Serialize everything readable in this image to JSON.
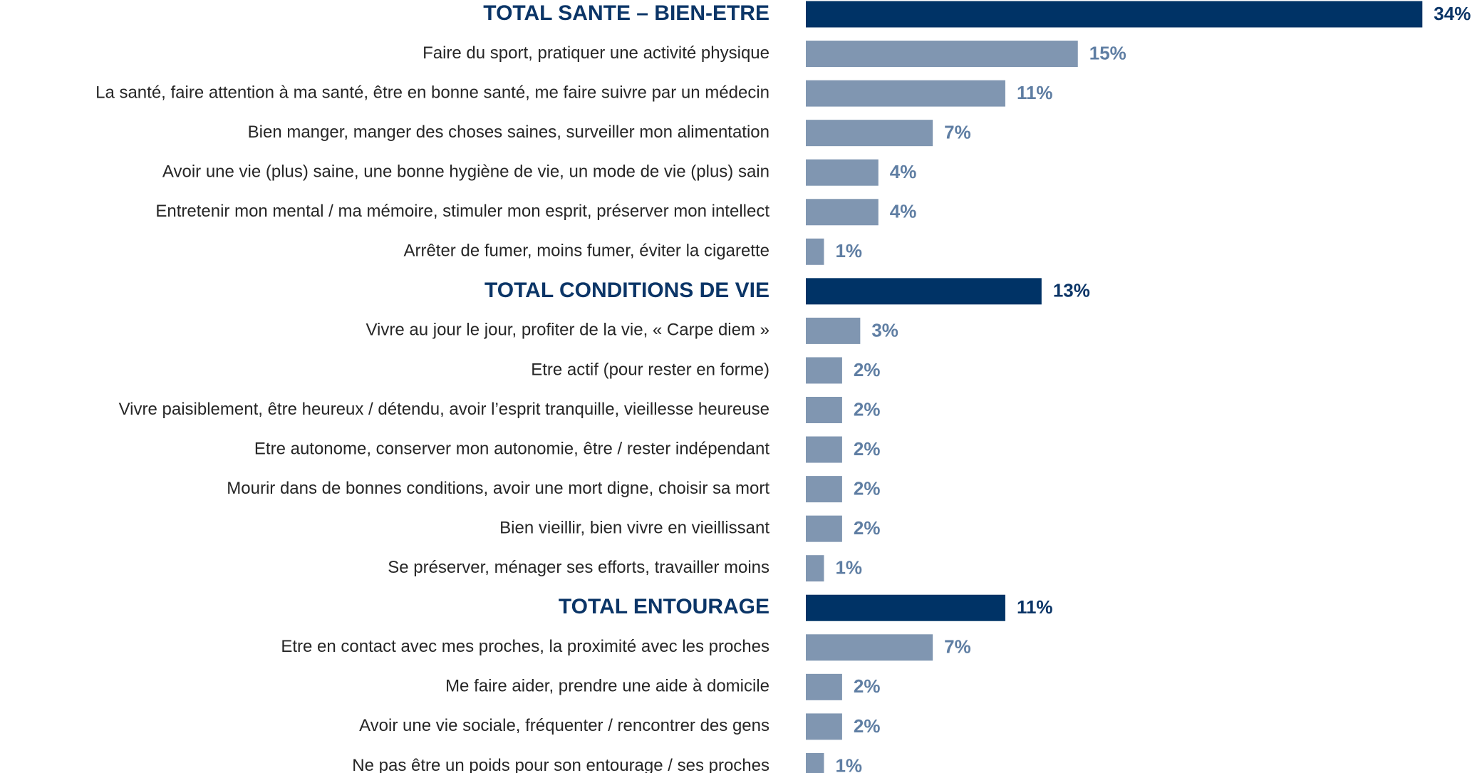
{
  "chart_data": {
    "type": "hbar",
    "categories": [
      "TOTAL SANTE – BIEN-ETRE",
      "Faire du sport, pratiquer une activité physique",
      "La santé, faire attention à ma santé, être en bonne santé, me faire suivre par un médecin",
      "Bien manger, manger des choses saines, surveiller mon alimentation",
      "Avoir une vie (plus) saine, une bonne hygiène de vie, un mode de vie (plus) sain",
      "Entretenir mon mental / ma mémoire, stimuler mon esprit, préserver mon intellect",
      "Arrêter de fumer, moins fumer, éviter la cigarette",
      "TOTAL CONDITIONS DE VIE",
      "Vivre au jour le jour, profiter de la vie, « Carpe diem »",
      "Etre actif (pour rester en forme)",
      "Vivre paisiblement, être heureux / détendu, avoir l’esprit tranquille, vieillesse heureuse",
      "Etre autonome, conserver mon autonomie, être / rester indépendant",
      "Mourir dans de bonnes conditions, avoir une mort digne, choisir sa mort",
      "Bien vieillir, bien vivre en vieillissant",
      "Se préserver, ménager ses efforts, travailler moins",
      "TOTAL ENTOURAGE",
      "Etre en contact avec mes proches, la proximité avec les proches",
      "Me faire aider, prendre une aide à domicile",
      "Avoir une vie sociale, fréquenter / rencontrer des gens",
      "Ne pas être un poids pour son entourage / ses proches"
    ],
    "values": [
      34,
      15,
      11,
      7,
      4,
      4,
      1,
      13,
      3,
      2,
      2,
      2,
      2,
      2,
      1,
      11,
      7,
      2,
      2,
      1
    ],
    "value_labels": [
      "34%",
      "15%",
      "11%",
      "7%",
      "4%",
      "4%",
      "1%",
      "13%",
      "3%",
      "2%",
      "2%",
      "2%",
      "2%",
      "2%",
      "1%",
      "11%",
      "7%",
      "2%",
      "2%",
      "1%"
    ],
    "colors": [
      "#003366",
      "#8096b1",
      "#8096b1",
      "#8096b1",
      "#8096b1",
      "#8096b1",
      "#8096b1",
      "#003366",
      "#8096b1",
      "#8096b1",
      "#8096b1",
      "#8096b1",
      "#8096b1",
      "#8096b1",
      "#8096b1",
      "#003366",
      "#8096b1",
      "#8096b1",
      "#8096b1",
      "#8096b1"
    ],
    "highlight_color": "#003366"
  }
}
